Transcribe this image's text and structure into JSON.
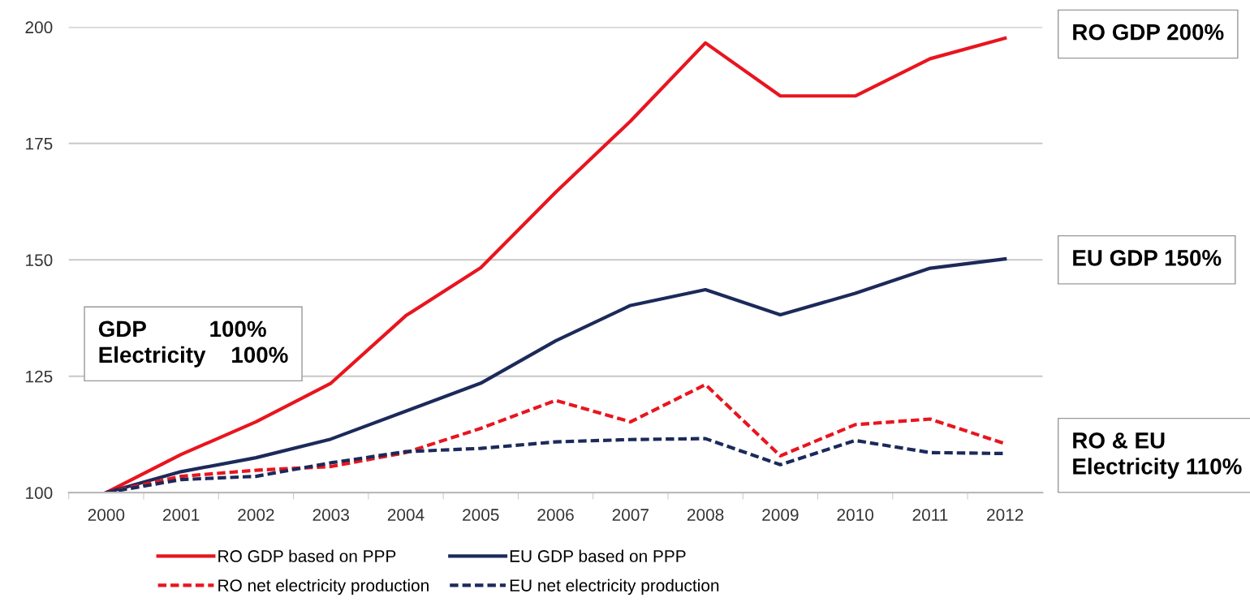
{
  "chart_data": {
    "type": "line",
    "categories": [
      "2000",
      "2001",
      "2002",
      "2003",
      "2004",
      "2005",
      "2006",
      "2007",
      "2008",
      "2009",
      "2010",
      "2011",
      "2012"
    ],
    "series": [
      {
        "name": "RO GDP based on PPP",
        "color": "#e8151f",
        "line_style": "solid",
        "values": [
          100,
          108.2,
          115.2,
          123.5,
          138,
          148.3,
          164.5,
          179.8,
          196.6,
          185.2,
          185.2,
          193.2,
          197.6
        ]
      },
      {
        "name": "EU GDP based on PPP",
        "color": "#1c2a5a",
        "line_style": "solid",
        "values": [
          100,
          104.5,
          107.5,
          111.5,
          117.5,
          123.5,
          132.6,
          140.2,
          143.6,
          138.2,
          142.8,
          148.2,
          150.2
        ]
      },
      {
        "name": "RO net electricity production",
        "color": "#e8151f",
        "line_style": "dashed",
        "values": [
          100,
          103.5,
          104.8,
          105.6,
          108.6,
          113.8,
          119.8,
          115.2,
          123.2,
          107.9,
          114.6,
          115.8,
          110.5
        ]
      },
      {
        "name": "EU net electricity production",
        "color": "#1c2a5a",
        "line_style": "dashed",
        "values": [
          100,
          102.8,
          103.5,
          106.4,
          108.8,
          109.5,
          110.9,
          111.4,
          111.6,
          106,
          111.2,
          108.6,
          108.4
        ]
      }
    ],
    "ylim": [
      100,
      200
    ],
    "yticks": [
      100,
      125,
      150,
      175,
      200
    ],
    "grid": "y",
    "legend": "bottom",
    "annotations": [
      "GDP          100%\nElectricity    100%",
      "RO GDP 200%",
      "EU GDP 150%",
      "RO & EU\nElectricity 110%"
    ]
  }
}
